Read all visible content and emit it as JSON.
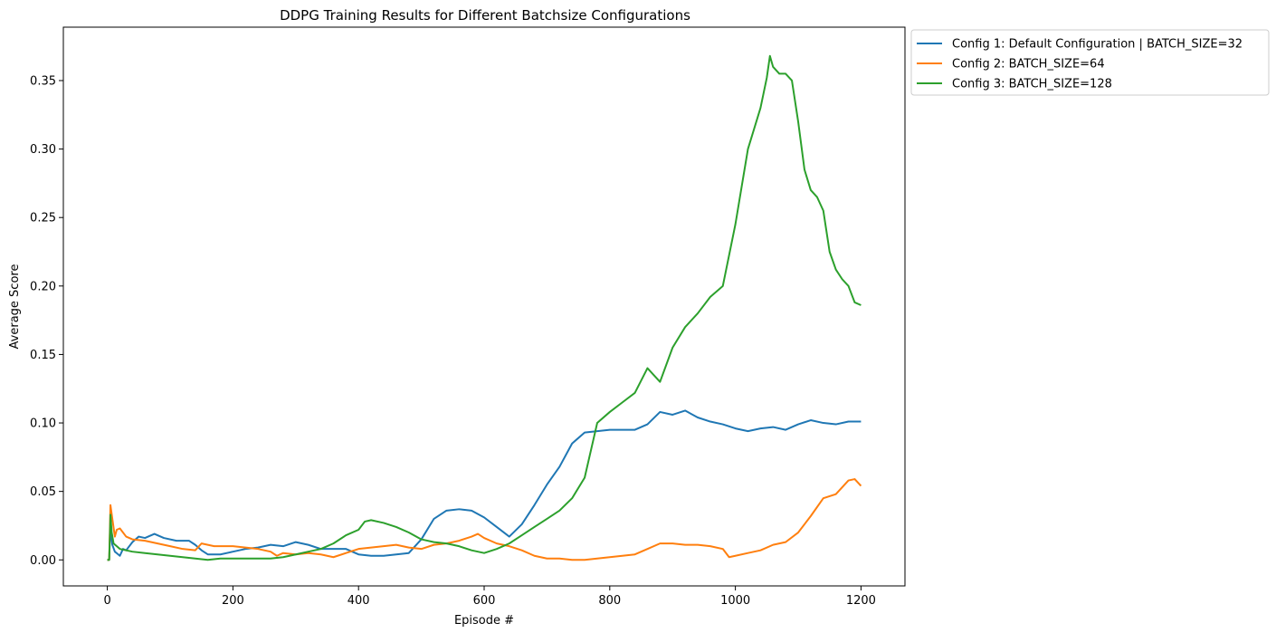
{
  "chart_data": {
    "type": "line",
    "title": "DDPG Training Results for Different Batchsize Configurations",
    "xlabel": "Episode #",
    "ylabel": "Average Score",
    "xlim": [
      -70,
      1270
    ],
    "ylim": [
      -0.019,
      0.389
    ],
    "x_ticks": [
      0,
      200,
      400,
      600,
      800,
      1000,
      1200
    ],
    "y_ticks": [
      0.0,
      0.05,
      0.1,
      0.15,
      0.2,
      0.25,
      0.3,
      0.35
    ],
    "x_tick_labels": [
      "0",
      "200",
      "400",
      "600",
      "800",
      "1000",
      "1200"
    ],
    "y_tick_labels": [
      "0.00",
      "0.05",
      "0.10",
      "0.15",
      "0.20",
      "0.25",
      "0.30",
      "0.35"
    ],
    "legend_position": "outside-top-right",
    "grid": false,
    "series": [
      {
        "name": "Config 1: Default Configuration | BATCH_SIZE=32",
        "color": "#1f77b4",
        "points": [
          [
            0,
            0.0
          ],
          [
            3,
            0.0
          ],
          [
            5,
            0.028
          ],
          [
            6,
            0.018
          ],
          [
            8,
            0.011
          ],
          [
            12,
            0.006
          ],
          [
            20,
            0.003
          ],
          [
            25,
            0.008
          ],
          [
            30,
            0.007
          ],
          [
            40,
            0.013
          ],
          [
            50,
            0.017
          ],
          [
            60,
            0.016
          ],
          [
            75,
            0.019
          ],
          [
            90,
            0.016
          ],
          [
            110,
            0.014
          ],
          [
            130,
            0.014
          ],
          [
            140,
            0.011
          ],
          [
            150,
            0.007
          ],
          [
            160,
            0.004
          ],
          [
            180,
            0.004
          ],
          [
            200,
            0.006
          ],
          [
            220,
            0.008
          ],
          [
            240,
            0.009
          ],
          [
            260,
            0.011
          ],
          [
            280,
            0.01
          ],
          [
            300,
            0.013
          ],
          [
            320,
            0.011
          ],
          [
            340,
            0.008
          ],
          [
            360,
            0.008
          ],
          [
            380,
            0.008
          ],
          [
            400,
            0.004
          ],
          [
            420,
            0.003
          ],
          [
            440,
            0.003
          ],
          [
            460,
            0.004
          ],
          [
            480,
            0.005
          ],
          [
            500,
            0.015
          ],
          [
            520,
            0.03
          ],
          [
            540,
            0.036
          ],
          [
            560,
            0.037
          ],
          [
            580,
            0.036
          ],
          [
            600,
            0.031
          ],
          [
            620,
            0.024
          ],
          [
            640,
            0.017
          ],
          [
            660,
            0.026
          ],
          [
            680,
            0.04
          ],
          [
            700,
            0.055
          ],
          [
            720,
            0.068
          ],
          [
            740,
            0.085
          ],
          [
            760,
            0.093
          ],
          [
            780,
            0.094
          ],
          [
            800,
            0.095
          ],
          [
            820,
            0.095
          ],
          [
            840,
            0.095
          ],
          [
            860,
            0.099
          ],
          [
            880,
            0.108
          ],
          [
            900,
            0.106
          ],
          [
            920,
            0.109
          ],
          [
            940,
            0.104
          ],
          [
            960,
            0.101
          ],
          [
            980,
            0.099
          ],
          [
            1000,
            0.096
          ],
          [
            1020,
            0.094
          ],
          [
            1040,
            0.096
          ],
          [
            1060,
            0.097
          ],
          [
            1080,
            0.095
          ],
          [
            1100,
            0.099
          ],
          [
            1120,
            0.102
          ],
          [
            1140,
            0.1
          ],
          [
            1160,
            0.099
          ],
          [
            1180,
            0.101
          ],
          [
            1200,
            0.101
          ]
        ]
      },
      {
        "name": "Config 2: BATCH_SIZE=64",
        "color": "#ff7f0e",
        "points": [
          [
            0,
            0.0
          ],
          [
            3,
            0.0
          ],
          [
            5,
            0.04
          ],
          [
            8,
            0.03
          ],
          [
            12,
            0.017
          ],
          [
            15,
            0.022
          ],
          [
            20,
            0.023
          ],
          [
            30,
            0.017
          ],
          [
            40,
            0.015
          ],
          [
            60,
            0.014
          ],
          [
            80,
            0.012
          ],
          [
            100,
            0.01
          ],
          [
            120,
            0.008
          ],
          [
            140,
            0.007
          ],
          [
            150,
            0.012
          ],
          [
            170,
            0.01
          ],
          [
            200,
            0.01
          ],
          [
            220,
            0.009
          ],
          [
            240,
            0.008
          ],
          [
            260,
            0.006
          ],
          [
            270,
            0.003
          ],
          [
            280,
            0.005
          ],
          [
            300,
            0.004
          ],
          [
            320,
            0.005
          ],
          [
            340,
            0.004
          ],
          [
            360,
            0.002
          ],
          [
            380,
            0.005
          ],
          [
            400,
            0.008
          ],
          [
            420,
            0.009
          ],
          [
            440,
            0.01
          ],
          [
            460,
            0.011
          ],
          [
            480,
            0.009
          ],
          [
            500,
            0.008
          ],
          [
            520,
            0.011
          ],
          [
            540,
            0.012
          ],
          [
            560,
            0.014
          ],
          [
            580,
            0.017
          ],
          [
            590,
            0.019
          ],
          [
            600,
            0.016
          ],
          [
            620,
            0.012
          ],
          [
            640,
            0.01
          ],
          [
            660,
            0.007
          ],
          [
            680,
            0.003
          ],
          [
            700,
            0.001
          ],
          [
            720,
            0.001
          ],
          [
            740,
            0.0
          ],
          [
            760,
            0.0
          ],
          [
            780,
            0.001
          ],
          [
            800,
            0.002
          ],
          [
            820,
            0.003
          ],
          [
            840,
            0.004
          ],
          [
            860,
            0.008
          ],
          [
            880,
            0.012
          ],
          [
            900,
            0.012
          ],
          [
            920,
            0.011
          ],
          [
            940,
            0.011
          ],
          [
            960,
            0.01
          ],
          [
            980,
            0.008
          ],
          [
            990,
            0.002
          ],
          [
            1000,
            0.003
          ],
          [
            1020,
            0.005
          ],
          [
            1040,
            0.007
          ],
          [
            1060,
            0.011
          ],
          [
            1080,
            0.013
          ],
          [
            1100,
            0.02
          ],
          [
            1120,
            0.032
          ],
          [
            1140,
            0.045
          ],
          [
            1160,
            0.048
          ],
          [
            1180,
            0.058
          ],
          [
            1190,
            0.059
          ],
          [
            1200,
            0.054
          ]
        ]
      },
      {
        "name": "Config 3: BATCH_SIZE=128",
        "color": "#2ca02c",
        "points": [
          [
            0,
            0.0
          ],
          [
            3,
            0.0
          ],
          [
            5,
            0.033
          ],
          [
            7,
            0.02
          ],
          [
            10,
            0.012
          ],
          [
            15,
            0.01
          ],
          [
            20,
            0.008
          ],
          [
            30,
            0.007
          ],
          [
            40,
            0.006
          ],
          [
            60,
            0.005
          ],
          [
            80,
            0.004
          ],
          [
            100,
            0.003
          ],
          [
            120,
            0.002
          ],
          [
            140,
            0.001
          ],
          [
            160,
            0.0
          ],
          [
            180,
            0.001
          ],
          [
            200,
            0.001
          ],
          [
            220,
            0.001
          ],
          [
            240,
            0.001
          ],
          [
            260,
            0.001
          ],
          [
            280,
            0.002
          ],
          [
            300,
            0.004
          ],
          [
            320,
            0.006
          ],
          [
            340,
            0.008
          ],
          [
            360,
            0.012
          ],
          [
            380,
            0.018
          ],
          [
            400,
            0.022
          ],
          [
            410,
            0.028
          ],
          [
            420,
            0.029
          ],
          [
            440,
            0.027
          ],
          [
            460,
            0.024
          ],
          [
            480,
            0.02
          ],
          [
            500,
            0.015
          ],
          [
            520,
            0.013
          ],
          [
            540,
            0.012
          ],
          [
            560,
            0.01
          ],
          [
            580,
            0.007
          ],
          [
            600,
            0.005
          ],
          [
            620,
            0.008
          ],
          [
            640,
            0.012
          ],
          [
            660,
            0.018
          ],
          [
            680,
            0.024
          ],
          [
            700,
            0.03
          ],
          [
            720,
            0.036
          ],
          [
            740,
            0.045
          ],
          [
            760,
            0.06
          ],
          [
            780,
            0.1
          ],
          [
            800,
            0.108
          ],
          [
            820,
            0.115
          ],
          [
            840,
            0.122
          ],
          [
            860,
            0.14
          ],
          [
            880,
            0.13
          ],
          [
            900,
            0.155
          ],
          [
            920,
            0.17
          ],
          [
            940,
            0.18
          ],
          [
            960,
            0.192
          ],
          [
            980,
            0.2
          ],
          [
            1000,
            0.245
          ],
          [
            1020,
            0.3
          ],
          [
            1040,
            0.33
          ],
          [
            1050,
            0.352
          ],
          [
            1055,
            0.368
          ],
          [
            1060,
            0.36
          ],
          [
            1070,
            0.355
          ],
          [
            1080,
            0.355
          ],
          [
            1090,
            0.35
          ],
          [
            1100,
            0.32
          ],
          [
            1110,
            0.285
          ],
          [
            1120,
            0.27
          ],
          [
            1130,
            0.265
          ],
          [
            1140,
            0.255
          ],
          [
            1150,
            0.225
          ],
          [
            1160,
            0.212
          ],
          [
            1170,
            0.205
          ],
          [
            1180,
            0.2
          ],
          [
            1190,
            0.188
          ],
          [
            1200,
            0.186
          ]
        ]
      }
    ]
  }
}
